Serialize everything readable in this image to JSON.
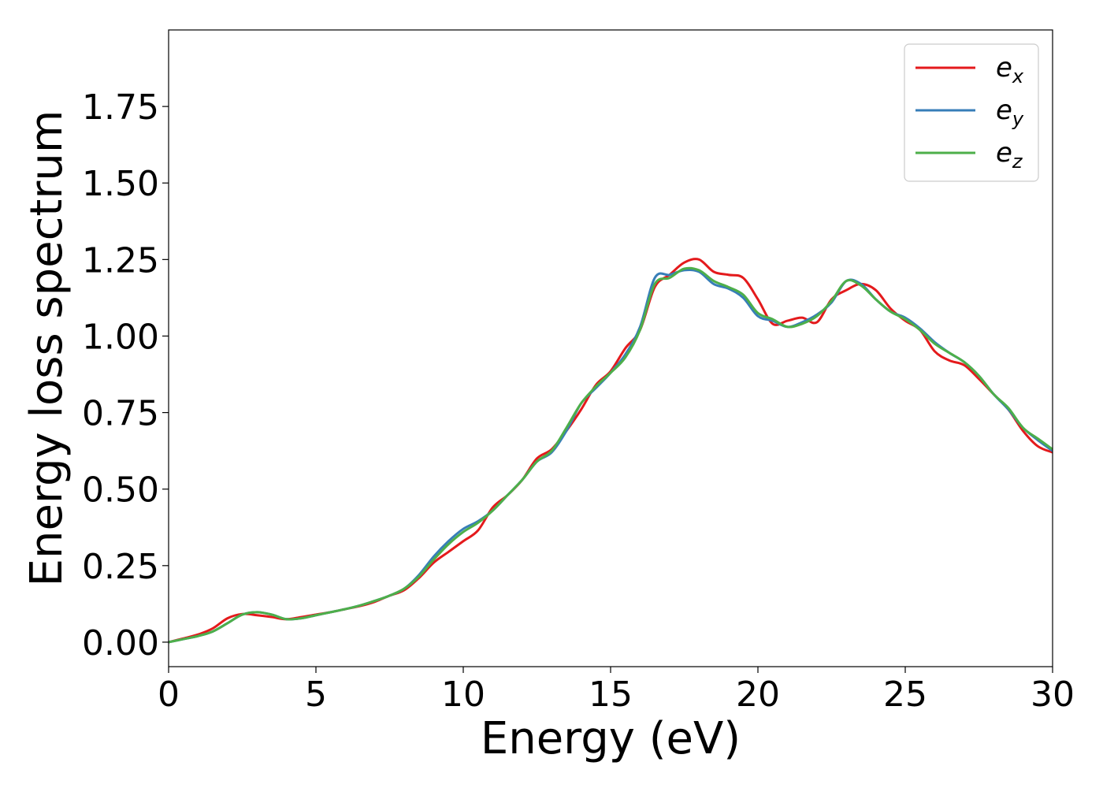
{
  "chart_data": {
    "type": "line",
    "xlabel": "Energy (eV)",
    "ylabel": "Energy loss spectrum",
    "xlim": [
      0,
      30
    ],
    "ylim": [
      -0.08,
      2.0
    ],
    "xticks": [
      0,
      5,
      10,
      15,
      20,
      25,
      30
    ],
    "xtick_labels": [
      "0",
      "5",
      "10",
      "15",
      "20",
      "25",
      "30"
    ],
    "yticks": [
      0,
      0.25,
      0.5,
      0.75,
      1.0,
      1.25,
      1.5,
      1.75
    ],
    "ytick_labels": [
      "0.00",
      "0.25",
      "0.50",
      "0.75",
      "1.00",
      "1.25",
      "1.50",
      "1.75"
    ],
    "grid": false,
    "legend_position": "top-right",
    "series": [
      {
        "name": "e",
        "subscript": "x",
        "color": "#e41a1c",
        "x": [
          0,
          0.5,
          1,
          1.5,
          2,
          2.5,
          3,
          3.5,
          4,
          4.5,
          5,
          5.5,
          6,
          6.5,
          7,
          7.5,
          8,
          8.5,
          9,
          9.5,
          10,
          10.5,
          11,
          11.5,
          12,
          12.5,
          13,
          13.5,
          14,
          14.5,
          15,
          15.5,
          16,
          16.5,
          17,
          17.5,
          18,
          18.5,
          19,
          19.5,
          20,
          20.5,
          21,
          21.5,
          22,
          22.5,
          23,
          23.5,
          24,
          24.5,
          25,
          25.5,
          26,
          26.5,
          27,
          27.5,
          28,
          28.5,
          29,
          29.5,
          30
        ],
        "y": [
          0.0,
          0.012,
          0.025,
          0.045,
          0.078,
          0.092,
          0.088,
          0.082,
          0.075,
          0.082,
          0.09,
          0.098,
          0.108,
          0.118,
          0.132,
          0.152,
          0.17,
          0.21,
          0.26,
          0.295,
          0.33,
          0.365,
          0.44,
          0.48,
          0.53,
          0.6,
          0.63,
          0.69,
          0.76,
          0.84,
          0.885,
          0.96,
          1.02,
          1.16,
          1.2,
          1.24,
          1.25,
          1.21,
          1.2,
          1.19,
          1.12,
          1.04,
          1.05,
          1.06,
          1.045,
          1.12,
          1.15,
          1.17,
          1.15,
          1.09,
          1.05,
          1.02,
          0.95,
          0.92,
          0.905,
          0.86,
          0.81,
          0.76,
          0.69,
          0.64,
          0.62
        ]
      },
      {
        "name": "e",
        "subscript": "y",
        "color": "#377eb8",
        "x": [
          0,
          0.5,
          1,
          1.5,
          2,
          2.5,
          3,
          3.5,
          4,
          4.5,
          5,
          5.5,
          6,
          6.5,
          7,
          7.5,
          8,
          8.5,
          9,
          9.5,
          10,
          10.5,
          11,
          11.5,
          12,
          12.5,
          13,
          13.5,
          14,
          14.5,
          15,
          15.5,
          16,
          16.5,
          17,
          17.5,
          18,
          18.5,
          19,
          19.5,
          20,
          20.5,
          21,
          21.5,
          22,
          22.5,
          23,
          23.5,
          24,
          24.5,
          25,
          25.5,
          26,
          26.5,
          27,
          27.5,
          28,
          28.5,
          29,
          29.5,
          30
        ],
        "y": [
          0.0,
          0.01,
          0.02,
          0.035,
          0.062,
          0.09,
          0.098,
          0.09,
          0.075,
          0.078,
          0.088,
          0.098,
          0.108,
          0.12,
          0.135,
          0.152,
          0.175,
          0.22,
          0.28,
          0.33,
          0.37,
          0.395,
          0.43,
          0.48,
          0.53,
          0.59,
          0.62,
          0.69,
          0.78,
          0.83,
          0.88,
          0.94,
          1.03,
          1.19,
          1.2,
          1.215,
          1.21,
          1.17,
          1.155,
          1.125,
          1.065,
          1.05,
          1.03,
          1.045,
          1.07,
          1.11,
          1.18,
          1.17,
          1.12,
          1.08,
          1.06,
          1.025,
          0.98,
          0.945,
          0.915,
          0.87,
          0.81,
          0.76,
          0.7,
          0.66,
          0.625
        ]
      },
      {
        "name": "e",
        "subscript": "z",
        "color": "#4daf4a",
        "x": [
          0,
          0.5,
          1,
          1.5,
          2,
          2.5,
          3,
          3.5,
          4,
          4.5,
          5,
          5.5,
          6,
          6.5,
          7,
          7.5,
          8,
          8.5,
          9,
          9.5,
          10,
          10.5,
          11,
          11.5,
          12,
          12.5,
          13,
          13.5,
          14,
          14.5,
          15,
          15.5,
          16,
          16.5,
          17,
          17.5,
          18,
          18.5,
          19,
          19.5,
          20,
          20.5,
          21,
          21.5,
          22,
          22.5,
          23,
          23.5,
          24,
          24.5,
          25,
          25.5,
          26,
          26.5,
          27,
          27.5,
          28,
          28.5,
          29,
          29.5,
          30
        ],
        "y": [
          0.0,
          0.01,
          0.02,
          0.035,
          0.062,
          0.09,
          0.098,
          0.09,
          0.075,
          0.078,
          0.088,
          0.098,
          0.108,
          0.12,
          0.135,
          0.152,
          0.175,
          0.215,
          0.27,
          0.32,
          0.36,
          0.39,
          0.43,
          0.48,
          0.53,
          0.59,
          0.625,
          0.7,
          0.78,
          0.835,
          0.88,
          0.93,
          1.02,
          1.17,
          1.19,
          1.22,
          1.215,
          1.18,
          1.16,
          1.135,
          1.075,
          1.055,
          1.03,
          1.04,
          1.065,
          1.115,
          1.18,
          1.165,
          1.12,
          1.08,
          1.055,
          1.02,
          0.975,
          0.945,
          0.915,
          0.87,
          0.81,
          0.765,
          0.7,
          0.665,
          0.63
        ]
      }
    ]
  }
}
